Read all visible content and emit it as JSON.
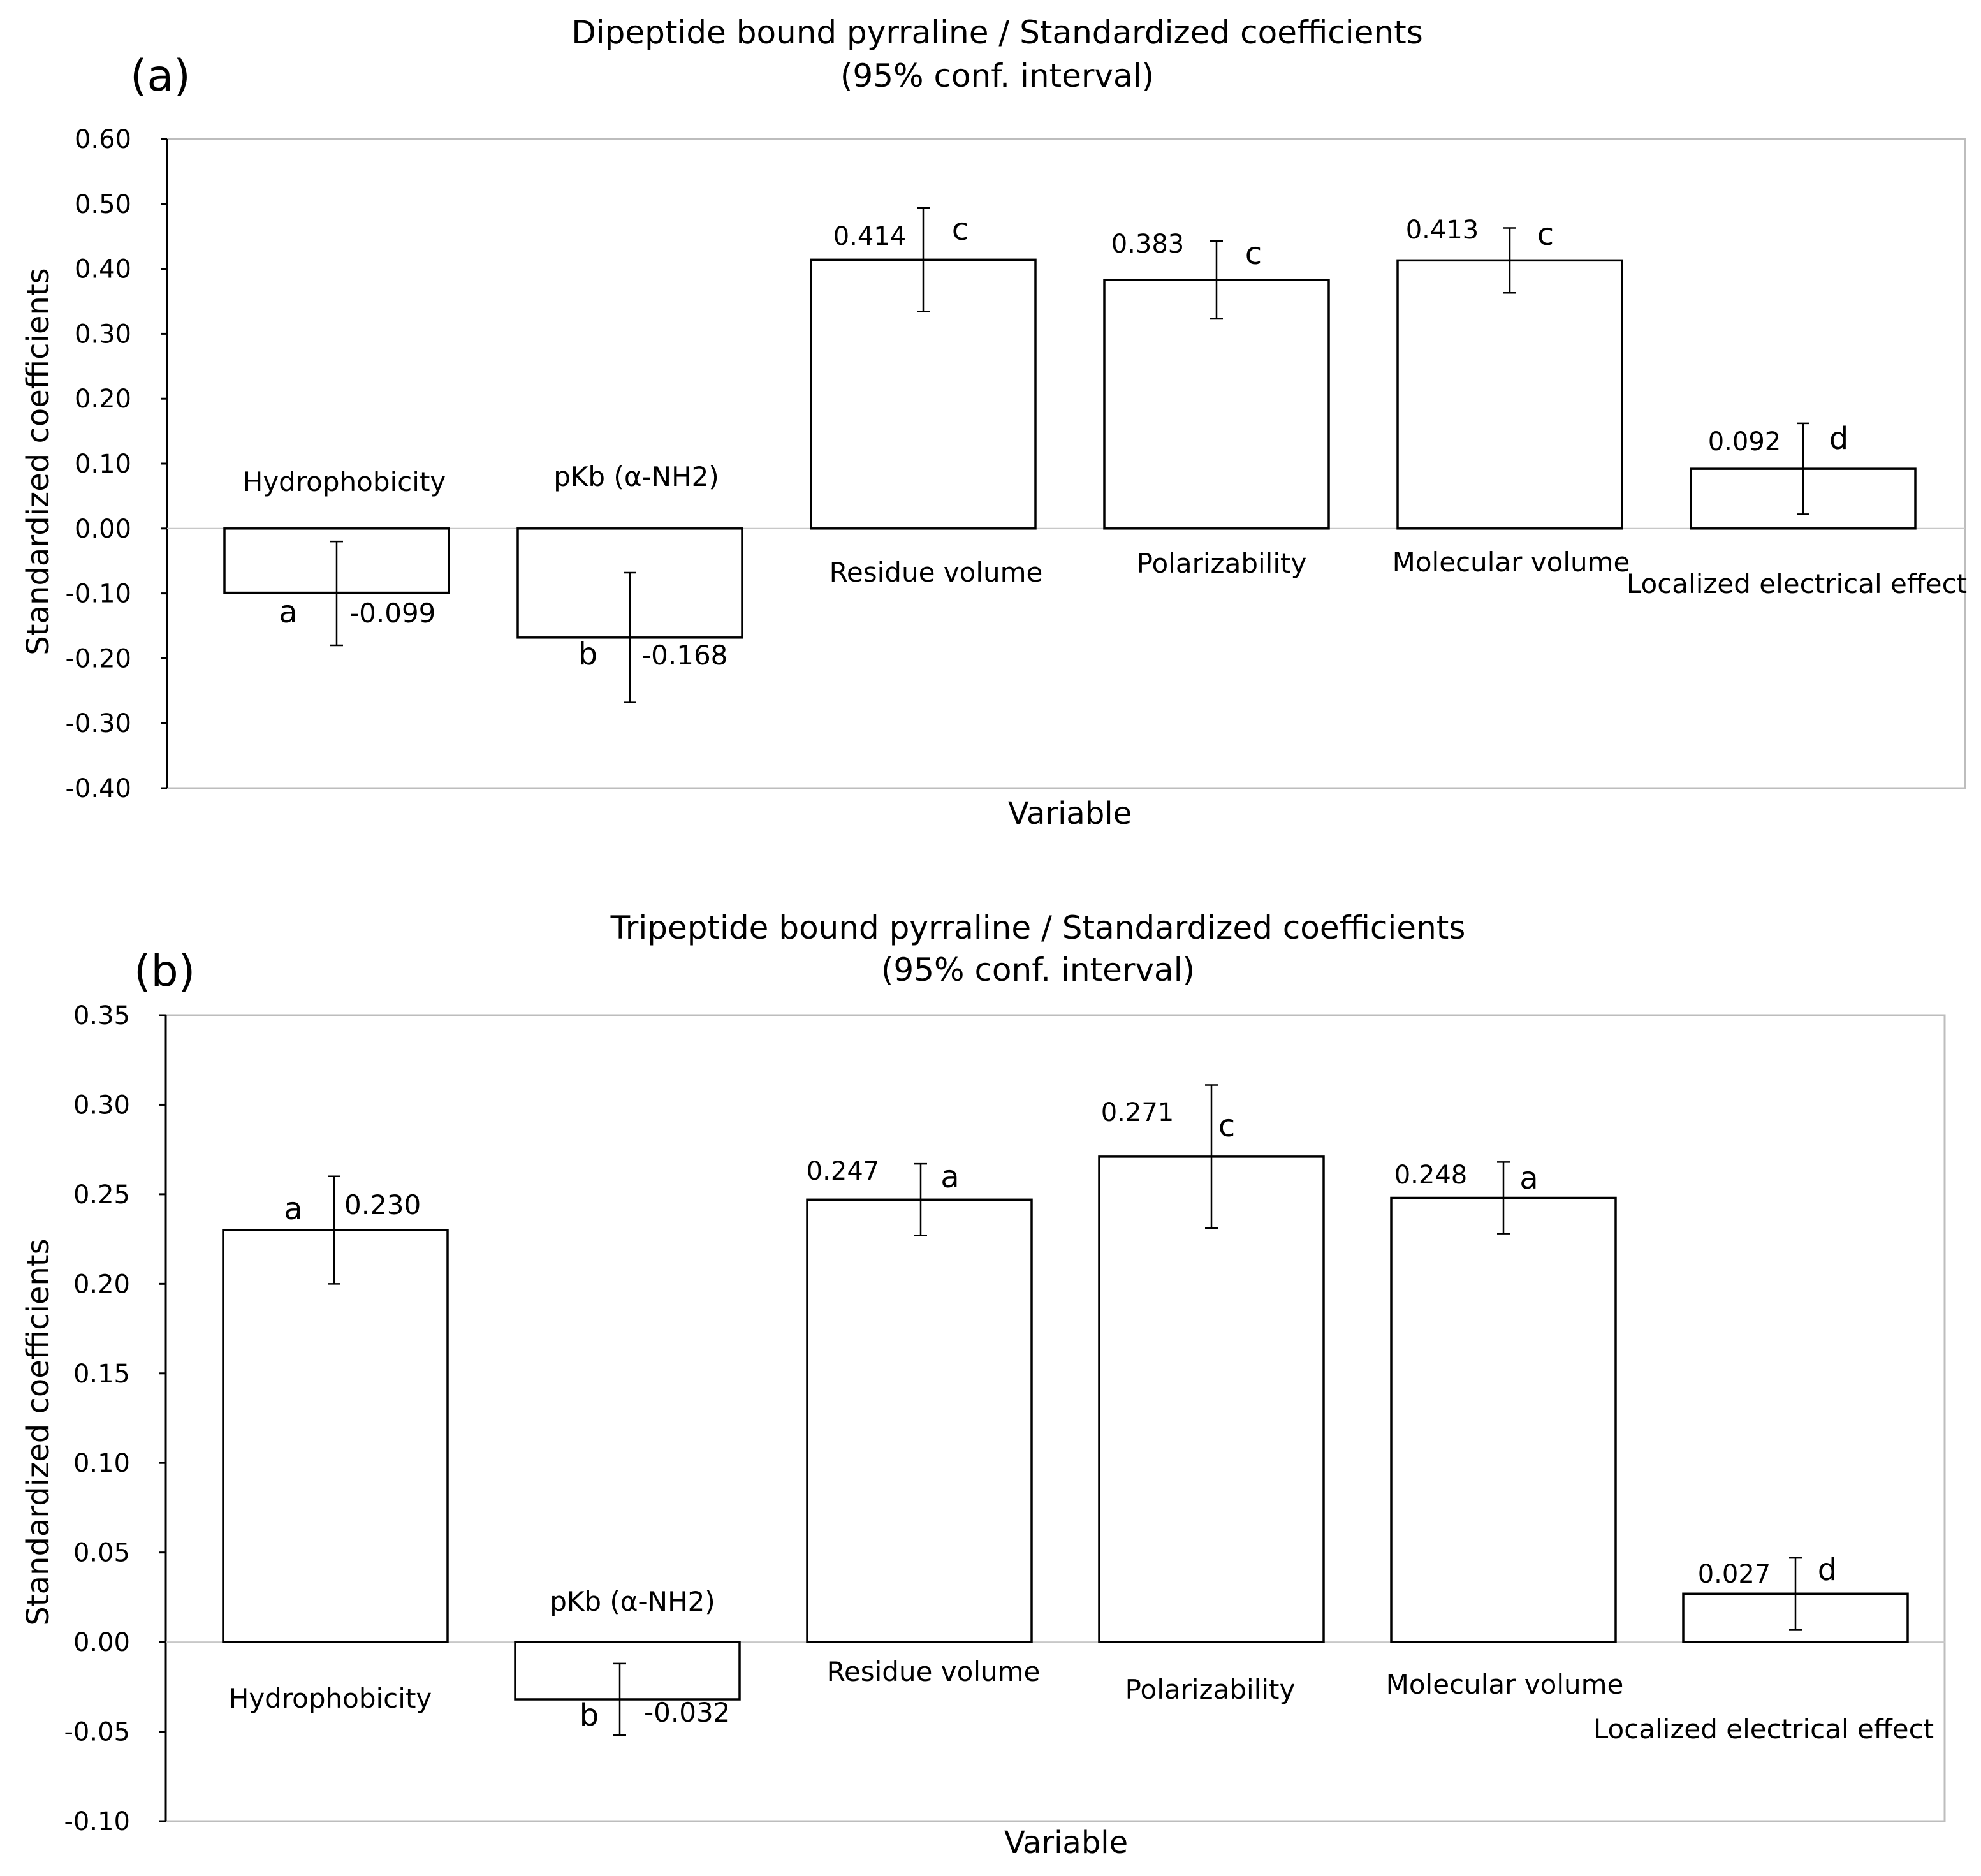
{
  "chart_data": [
    {
      "type": "bar",
      "panel_label": "(a)",
      "title": "Dipeptide bound pyrraline / Standardized coefficients",
      "subtitle": "(95% conf. interval)",
      "xlabel": "Variable",
      "ylabel": "Standardized coefficients",
      "ylim": [
        -0.4,
        0.6
      ],
      "yticks": [
        "0.60",
        "0.50",
        "0.40",
        "0.30",
        "0.20",
        "0.10",
        "0.00",
        "-0.10",
        "-0.20",
        "-0.30",
        "-0.40"
      ],
      "grid": false,
      "categories": [
        "Hydrophobicity",
        "pKb (α-NH2)",
        "Residue volume",
        "Polarizability",
        "Molecular volume",
        "Localized electrical effect"
      ],
      "values": [
        -0.099,
        -0.168,
        0.414,
        0.383,
        0.413,
        0.092
      ],
      "value_labels": [
        "-0.099",
        "-0.168",
        "0.414",
        "0.383",
        "0.413",
        "0.092"
      ],
      "ci_low": [
        -0.18,
        -0.268,
        0.334,
        0.323,
        0.363,
        0.022
      ],
      "ci_high": [
        -0.02,
        -0.068,
        0.494,
        0.443,
        0.463,
        0.162
      ],
      "group_letters": [
        "a",
        "b",
        "c",
        "c",
        "c",
        "d"
      ]
    },
    {
      "type": "bar",
      "panel_label": "(b)",
      "title": "Tripeptide bound pyrraline / Standardized coefficients",
      "subtitle": "(95% conf. interval)",
      "xlabel": "Variable",
      "ylabel": "Standardized coefficients",
      "ylim": [
        -0.1,
        0.35
      ],
      "yticks": [
        "0.35",
        "0.30",
        "0.25",
        "0.20",
        "0.15",
        "0.10",
        "0.05",
        "0.00",
        "-0.05",
        "-0.10"
      ],
      "grid": false,
      "categories": [
        "Hydrophobicity",
        "pKb (α-NH2)",
        "Residue volume",
        "Polarizability",
        "Molecular volume",
        "Localized electrical effect"
      ],
      "values": [
        0.23,
        -0.032,
        0.247,
        0.271,
        0.248,
        0.027
      ],
      "value_labels": [
        "0.230",
        "-0.032",
        "0.247",
        "0.271",
        "0.248",
        "0.027"
      ],
      "ci_low": [
        0.2,
        -0.052,
        0.227,
        0.231,
        0.228,
        0.007
      ],
      "ci_high": [
        0.26,
        -0.012,
        0.267,
        0.311,
        0.268,
        0.047
      ],
      "group_letters": [
        "a",
        "b",
        "a",
        "c",
        "a",
        "d"
      ]
    }
  ]
}
